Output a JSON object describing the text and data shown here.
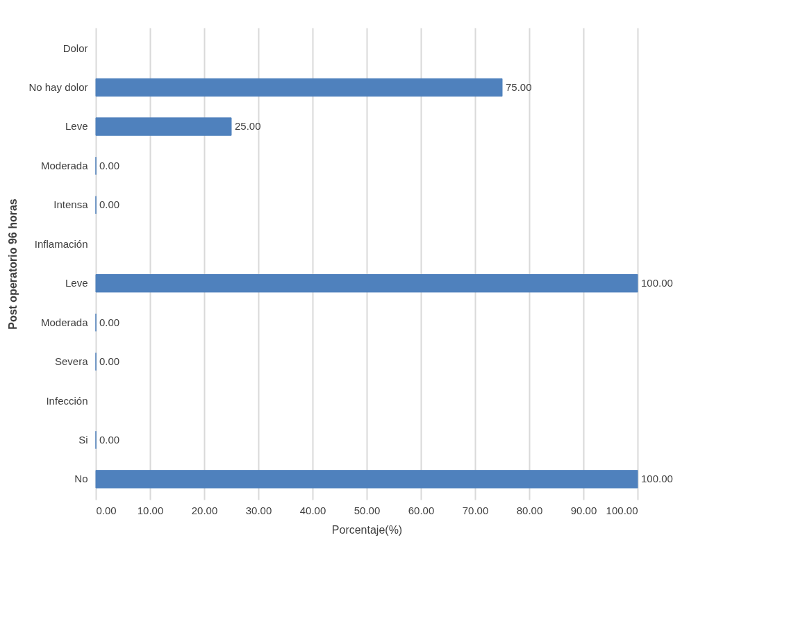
{
  "chart_data": {
    "type": "bar",
    "orientation": "horizontal",
    "xlabel": "Porcentaje(%)",
    "ylabel": "Post operatorio 96 horas",
    "categories": [
      "Dolor",
      "No hay dolor",
      "Leve",
      "Moderada",
      "Intensa",
      "Inflamación",
      "Leve",
      "Moderada",
      "Severa",
      "Infección",
      "Si",
      "No"
    ],
    "values": [
      null,
      75,
      25,
      0,
      0,
      null,
      100,
      0,
      0,
      null,
      0,
      100
    ],
    "value_labels": [
      null,
      "75.00",
      "25.00",
      "0.00",
      "0.00",
      null,
      "100.00",
      "0.00",
      "0.00",
      null,
      "0.00",
      "100.00"
    ],
    "color": "#4f81bd",
    "xlim": [
      0,
      100
    ],
    "xticks": [
      {
        "value": 0,
        "label": "0.00"
      },
      {
        "value": 10,
        "label": "10.00"
      },
      {
        "value": 20,
        "label": "20.00"
      },
      {
        "value": 30,
        "label": "30.00"
      },
      {
        "value": 40,
        "label": "40.00"
      },
      {
        "value": 50,
        "label": "50.00"
      },
      {
        "value": 60,
        "label": "60.00"
      },
      {
        "value": 70,
        "label": "70.00"
      },
      {
        "value": 80,
        "label": "80.00"
      },
      {
        "value": 90,
        "label": "90.00"
      },
      {
        "value": 100,
        "label": "100.00"
      }
    ],
    "grid": "x"
  }
}
